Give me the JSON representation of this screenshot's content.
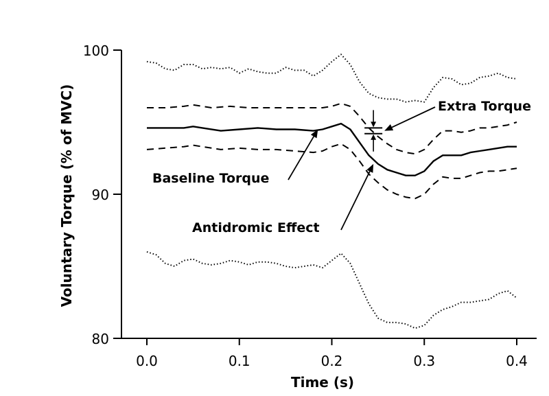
{
  "chart_data": {
    "type": "line",
    "xlabel": "Time (s)",
    "ylabel": "Voluntary Torque (% of MVC)",
    "xlim": [
      -0.025,
      0.41
    ],
    "ylim": [
      80,
      100
    ],
    "x_ticks": [
      0.0,
      0.1,
      0.2,
      0.3,
      0.4
    ],
    "x_tick_labels": [
      "0.0",
      "0.1",
      "0.2",
      "0.3",
      "0.4"
    ],
    "y_ticks": [
      80,
      90,
      100
    ],
    "y_tick_labels": [
      "80",
      "90",
      "100"
    ],
    "grid": false,
    "series": [
      {
        "style": "dotted",
        "points": [
          [
            0.0,
            99.2
          ],
          [
            0.01,
            99.1
          ],
          [
            0.02,
            98.7
          ],
          [
            0.03,
            98.6
          ],
          [
            0.04,
            99.0
          ],
          [
            0.05,
            99.0
          ],
          [
            0.06,
            98.7
          ],
          [
            0.07,
            98.8
          ],
          [
            0.08,
            98.7
          ],
          [
            0.09,
            98.8
          ],
          [
            0.1,
            98.4
          ],
          [
            0.11,
            98.7
          ],
          [
            0.12,
            98.5
          ],
          [
            0.13,
            98.4
          ],
          [
            0.14,
            98.4
          ],
          [
            0.15,
            98.8
          ],
          [
            0.16,
            98.6
          ],
          [
            0.17,
            98.6
          ],
          [
            0.18,
            98.2
          ],
          [
            0.19,
            98.6
          ],
          [
            0.2,
            99.2
          ],
          [
            0.21,
            99.7
          ],
          [
            0.22,
            99.0
          ],
          [
            0.23,
            97.8
          ],
          [
            0.24,
            97.0
          ],
          [
            0.25,
            96.7
          ],
          [
            0.26,
            96.6
          ],
          [
            0.27,
            96.6
          ],
          [
            0.28,
            96.4
          ],
          [
            0.29,
            96.5
          ],
          [
            0.3,
            96.4
          ],
          [
            0.31,
            97.4
          ],
          [
            0.32,
            98.1
          ],
          [
            0.33,
            98.0
          ],
          [
            0.34,
            97.6
          ],
          [
            0.35,
            97.7
          ],
          [
            0.36,
            98.1
          ],
          [
            0.37,
            98.2
          ],
          [
            0.38,
            98.4
          ],
          [
            0.39,
            98.1
          ],
          [
            0.4,
            98.0
          ]
        ]
      },
      {
        "style": "dashed",
        "points": [
          [
            0.0,
            96.0
          ],
          [
            0.02,
            96.0
          ],
          [
            0.04,
            96.1
          ],
          [
            0.05,
            96.2
          ],
          [
            0.07,
            96.0
          ],
          [
            0.09,
            96.1
          ],
          [
            0.11,
            96.0
          ],
          [
            0.13,
            96.0
          ],
          [
            0.15,
            96.0
          ],
          [
            0.17,
            96.0
          ],
          [
            0.19,
            96.0
          ],
          [
            0.2,
            96.1
          ],
          [
            0.21,
            96.3
          ],
          [
            0.22,
            96.1
          ],
          [
            0.23,
            95.4
          ],
          [
            0.24,
            94.6
          ],
          [
            0.25,
            94.0
          ],
          [
            0.26,
            93.5
          ],
          [
            0.27,
            93.1
          ],
          [
            0.28,
            92.9
          ],
          [
            0.29,
            92.8
          ],
          [
            0.3,
            93.1
          ],
          [
            0.31,
            93.8
          ],
          [
            0.32,
            94.4
          ],
          [
            0.33,
            94.4
          ],
          [
            0.34,
            94.3
          ],
          [
            0.35,
            94.4
          ],
          [
            0.36,
            94.6
          ],
          [
            0.37,
            94.6
          ],
          [
            0.38,
            94.7
          ],
          [
            0.39,
            94.8
          ],
          [
            0.4,
            95.0
          ]
        ]
      },
      {
        "style": "solid",
        "points": [
          [
            0.0,
            94.6
          ],
          [
            0.02,
            94.6
          ],
          [
            0.04,
            94.6
          ],
          [
            0.05,
            94.7
          ],
          [
            0.06,
            94.6
          ],
          [
            0.08,
            94.4
          ],
          [
            0.1,
            94.5
          ],
          [
            0.12,
            94.6
          ],
          [
            0.14,
            94.5
          ],
          [
            0.16,
            94.5
          ],
          [
            0.18,
            94.4
          ],
          [
            0.19,
            94.5
          ],
          [
            0.2,
            94.7
          ],
          [
            0.21,
            94.9
          ],
          [
            0.22,
            94.5
          ],
          [
            0.23,
            93.6
          ],
          [
            0.24,
            92.7
          ],
          [
            0.25,
            92.1
          ],
          [
            0.26,
            91.7
          ],
          [
            0.27,
            91.5
          ],
          [
            0.28,
            91.3
          ],
          [
            0.29,
            91.3
          ],
          [
            0.3,
            91.6
          ],
          [
            0.31,
            92.3
          ],
          [
            0.32,
            92.7
          ],
          [
            0.33,
            92.7
          ],
          [
            0.34,
            92.7
          ],
          [
            0.35,
            92.9
          ],
          [
            0.36,
            93.0
          ],
          [
            0.37,
            93.1
          ],
          [
            0.38,
            93.2
          ],
          [
            0.39,
            93.3
          ],
          [
            0.4,
            93.3
          ]
        ]
      },
      {
        "style": "dashed",
        "points": [
          [
            0.0,
            93.1
          ],
          [
            0.02,
            93.2
          ],
          [
            0.04,
            93.3
          ],
          [
            0.05,
            93.4
          ],
          [
            0.06,
            93.3
          ],
          [
            0.08,
            93.1
          ],
          [
            0.1,
            93.2
          ],
          [
            0.12,
            93.1
          ],
          [
            0.14,
            93.1
          ],
          [
            0.16,
            93.0
          ],
          [
            0.18,
            92.9
          ],
          [
            0.19,
            93.0
          ],
          [
            0.2,
            93.3
          ],
          [
            0.21,
            93.5
          ],
          [
            0.22,
            93.1
          ],
          [
            0.23,
            92.3
          ],
          [
            0.24,
            91.4
          ],
          [
            0.25,
            90.8
          ],
          [
            0.26,
            90.3
          ],
          [
            0.27,
            90.0
          ],
          [
            0.28,
            89.8
          ],
          [
            0.29,
            89.7
          ],
          [
            0.3,
            90.0
          ],
          [
            0.31,
            90.7
          ],
          [
            0.32,
            91.2
          ],
          [
            0.33,
            91.1
          ],
          [
            0.34,
            91.1
          ],
          [
            0.35,
            91.3
          ],
          [
            0.36,
            91.5
          ],
          [
            0.37,
            91.6
          ],
          [
            0.38,
            91.6
          ],
          [
            0.39,
            91.7
          ],
          [
            0.4,
            91.8
          ]
        ]
      },
      {
        "style": "dotted",
        "points": [
          [
            0.0,
            86.0
          ],
          [
            0.01,
            85.8
          ],
          [
            0.02,
            85.2
          ],
          [
            0.03,
            85.0
          ],
          [
            0.04,
            85.4
          ],
          [
            0.05,
            85.5
          ],
          [
            0.06,
            85.2
          ],
          [
            0.07,
            85.1
          ],
          [
            0.08,
            85.2
          ],
          [
            0.09,
            85.4
          ],
          [
            0.1,
            85.3
          ],
          [
            0.11,
            85.1
          ],
          [
            0.12,
            85.3
          ],
          [
            0.13,
            85.3
          ],
          [
            0.14,
            85.2
          ],
          [
            0.15,
            85.0
          ],
          [
            0.16,
            84.9
          ],
          [
            0.17,
            85.0
          ],
          [
            0.18,
            85.1
          ],
          [
            0.19,
            84.9
          ],
          [
            0.2,
            85.4
          ],
          [
            0.21,
            85.9
          ],
          [
            0.22,
            85.2
          ],
          [
            0.23,
            83.8
          ],
          [
            0.24,
            82.4
          ],
          [
            0.25,
            81.4
          ],
          [
            0.26,
            81.1
          ],
          [
            0.27,
            81.1
          ],
          [
            0.28,
            81.0
          ],
          [
            0.29,
            80.7
          ],
          [
            0.3,
            80.9
          ],
          [
            0.31,
            81.6
          ],
          [
            0.32,
            82.0
          ],
          [
            0.33,
            82.2
          ],
          [
            0.34,
            82.5
          ],
          [
            0.35,
            82.5
          ],
          [
            0.36,
            82.6
          ],
          [
            0.37,
            82.7
          ],
          [
            0.38,
            83.1
          ],
          [
            0.39,
            83.3
          ],
          [
            0.4,
            82.8
          ]
        ]
      }
    ],
    "annotations": [
      {
        "text": "Extra Torque",
        "points_to": [
          0.245,
          94.4
        ]
      },
      {
        "text": "Baseline Torque",
        "points_to": [
          0.185,
          94.5
        ]
      },
      {
        "text": "Antidromic Effect",
        "points_to": [
          0.245,
          92.1
        ]
      }
    ],
    "marker": {
      "type": "extra-torque-bracket",
      "x": 0.245,
      "y_top": 94.6,
      "y_bottom": 94.2
    }
  }
}
